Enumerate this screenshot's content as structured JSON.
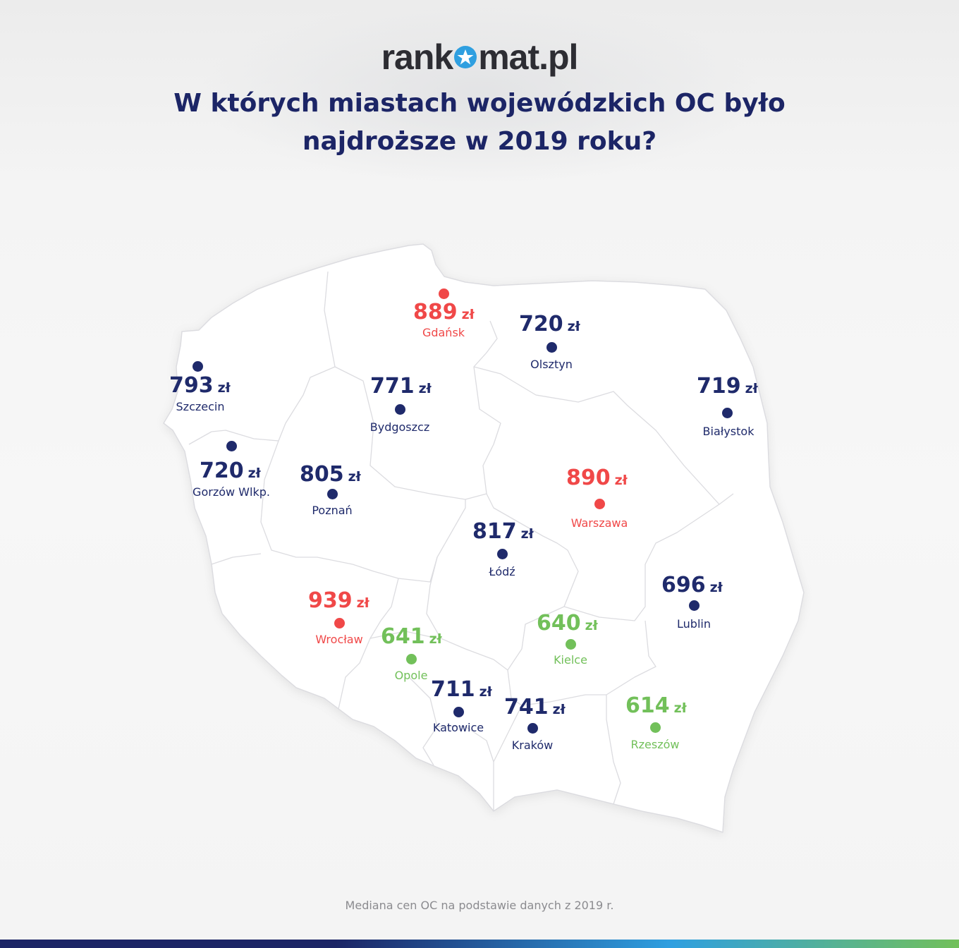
{
  "brand": {
    "logo_left": "rank",
    "logo_right": "mat.pl",
    "star_color": "#2f9fe0"
  },
  "title_lines": [
    "W których miastach wojewódzkich OC było",
    "najdroższe w 2019 roku?"
  ],
  "currency": "zł",
  "colors": {
    "normal": "#1f2a6b",
    "expensive": "#f04848",
    "cheap": "#72c05a",
    "title": "#1c2566",
    "map_fill": "#ffffff",
    "map_border": "#d7d7da"
  },
  "cities": [
    {
      "name": "Gdańsk",
      "price": "889",
      "category": "expensive"
    },
    {
      "name": "Olsztyn",
      "price": "720",
      "category": "normal"
    },
    {
      "name": "Szczecin",
      "price": "793",
      "category": "normal"
    },
    {
      "name": "Bydgoszcz",
      "price": "771",
      "category": "normal"
    },
    {
      "name": "Białystok",
      "price": "719",
      "category": "normal"
    },
    {
      "name": "Gorzów Wlkp.",
      "price": "720",
      "category": "normal"
    },
    {
      "name": "Poznań",
      "price": "805",
      "category": "normal"
    },
    {
      "name": "Warszawa",
      "price": "890",
      "category": "expensive"
    },
    {
      "name": "Łódź",
      "price": "817",
      "category": "normal"
    },
    {
      "name": "Lublin",
      "price": "696",
      "category": "normal"
    },
    {
      "name": "Wrocław",
      "price": "939",
      "category": "expensive"
    },
    {
      "name": "Opole",
      "price": "641",
      "category": "cheap"
    },
    {
      "name": "Kielce",
      "price": "640",
      "category": "cheap"
    },
    {
      "name": "Katowice",
      "price": "711",
      "category": "normal"
    },
    {
      "name": "Kraków",
      "price": "741",
      "category": "normal"
    },
    {
      "name": "Rzeszów",
      "price": "614",
      "category": "cheap"
    }
  ],
  "footnote": "Mediana cen OC na podstawie danych z 2019 r.",
  "bottom_bar_colors": [
    "#1c2566",
    "#2f9fe0",
    "#72c05a"
  ]
}
